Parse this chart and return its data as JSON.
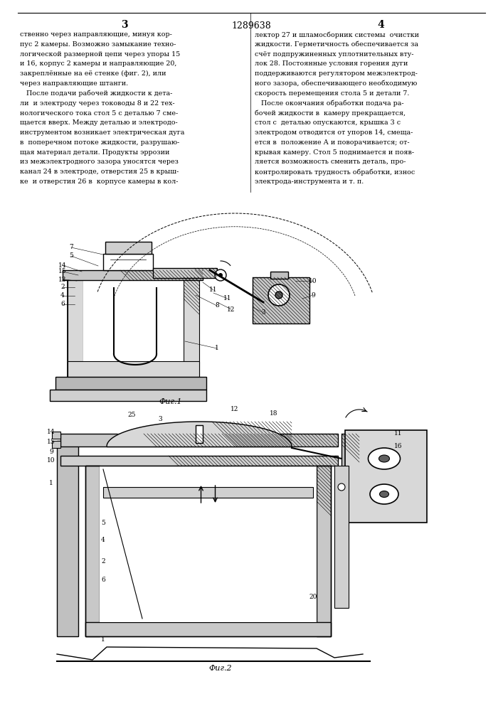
{
  "page_number_center": "1289638",
  "col_left_number": "3",
  "col_right_number": "4",
  "background_color": "#ffffff",
  "text_color": "#000000",
  "fig1_caption": "Фиг.1",
  "fig2_caption": "Фиг.2",
  "left_text": "ственно через направляющие, минуя кор-\nпус 2 камеры. Возможно замыкание техно-\nлогической размерной цепи через упоры 15\nи 16, корпус 2 камеры и направляющие 20,\nзакреплённые на её стенке (фиг. 2), или\nчерез направляющие штанги.\n   После подачи рабочей жидкости к дета-\nли  и электроду через тоководы 8 и 22 тех-\nнологического тока стол 5 с деталью 7 сме-\nщается вверх. Между деталью и электродо-\nинструментом возникает электрическая дуга\nв  поперечном потоке жидкости, разрушаю-\nщая материал детали. Продукты эррозии\nиз межэлектродного зазора уносятся через\nканал 24 в электроде, отверстия 25 в крыш-\nке  и отверстия 26 в  корпусе камеры в кол-",
  "right_text": "лектор 27 и шламосборник системы  очистки\nжидкости. Герметичность обеспечивается за\nсчёт подпружиненных уплотнительных вту-\nлок 28. Постоянные условия горения дуги\nподдерживаются регулятором межэлектрод-\nного зазора, обеспечивающего необходимую\nскорость перемещения стола 5 и детали 7.\n   После окончания обработки подача ра-\nбочей жидкости в  камеру прекращается,\nстол с  деталью опускаются, крышка 3 с\nэлектродом отводится от упоров 14, смеща-\nется в  положение А и поворачивается; от-\nкрывая камеру. Стол 5 поднимается и появ-\nляется возможность сменить деталь, про-\nконтролировать трудность обработки, износ\nэлектрода-инструмента и т. п."
}
